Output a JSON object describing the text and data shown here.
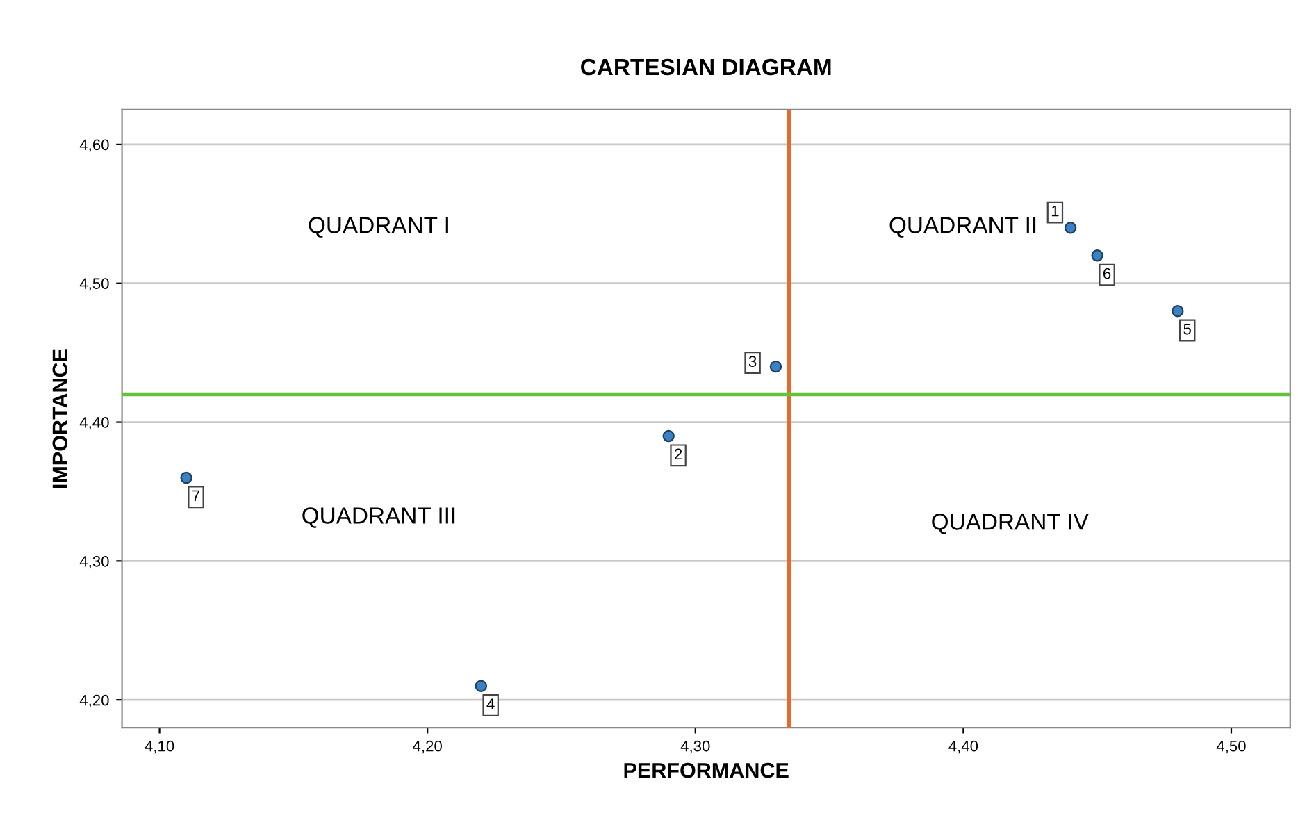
{
  "chart_data": {
    "type": "scatter",
    "title": "CARTESIAN DIAGRAM",
    "xlabel": "PERFORMANCE",
    "ylabel": "IMPORTANCE",
    "x": [
      4.44,
      4.29,
      4.33,
      4.22,
      4.48,
      4.45,
      4.11
    ],
    "series": [
      {
        "color": "#3b82c4",
        "values": [
          4.54,
          4.39,
          4.44,
          4.21,
          4.48,
          4.52,
          4.36
        ]
      }
    ],
    "marker": "circle",
    "grid": "y",
    "xlim": [
      4.086,
      4.522
    ],
    "ylim": [
      4.18,
      4.625
    ],
    "xticks": [
      {
        "value": 4.1,
        "label": "4,10"
      },
      {
        "value": 4.2,
        "label": "4,20"
      },
      {
        "value": 4.3,
        "label": "4,30"
      },
      {
        "value": 4.4,
        "label": "4,40"
      },
      {
        "value": 4.5,
        "label": "4,50"
      }
    ],
    "yticks": [
      {
        "value": 4.2,
        "label": "4,20"
      },
      {
        "value": 4.3,
        "label": "4,30"
      },
      {
        "value": 4.4,
        "label": "4,40"
      },
      {
        "value": 4.5,
        "label": "4,50"
      },
      {
        "value": 4.6,
        "label": "4,60"
      }
    ],
    "ref_lines": [
      {
        "axis": "x",
        "value": 4.335,
        "color": "#e8692c"
      },
      {
        "axis": "y",
        "value": 4.42,
        "color": "#66c23a"
      }
    ],
    "annotations": [
      {
        "text": "1",
        "x": 4.44,
        "y": 4.54
      },
      {
        "text": "2",
        "x": 4.29,
        "y": 4.39
      },
      {
        "text": "3",
        "x": 4.33,
        "y": 4.44
      },
      {
        "text": "4",
        "x": 4.22,
        "y": 4.21
      },
      {
        "text": "5",
        "x": 4.48,
        "y": 4.48
      },
      {
        "text": "6",
        "x": 4.45,
        "y": 4.52
      },
      {
        "text": "7",
        "x": 4.11,
        "y": 4.36
      },
      "QUADRANT I",
      "QUADRANT II",
      "QUADRANT III",
      "QUADRANT IV"
    ]
  }
}
